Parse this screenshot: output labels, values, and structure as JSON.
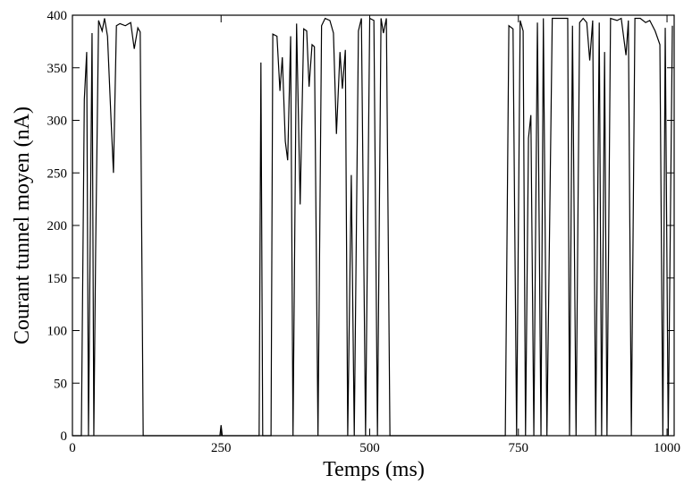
{
  "chart_data": {
    "type": "line",
    "x_label": "Temps (ms)",
    "y_label": "Courant tunnel moyen (nA)",
    "color": "#000000",
    "xlim": [
      0,
      1012
    ],
    "ylim": [
      0,
      400
    ],
    "xticks": [
      0,
      250,
      500,
      750,
      1000
    ],
    "yticks": [
      0,
      50,
      100,
      150,
      200,
      250,
      300,
      350,
      400
    ],
    "x": [
      0,
      15,
      20,
      24,
      27,
      33,
      36,
      39,
      44,
      50,
      54,
      59,
      65,
      69,
      74,
      80,
      89,
      98,
      104,
      110,
      114,
      119,
      248,
      250,
      252,
      314,
      317,
      320,
      334,
      337,
      344,
      349,
      353,
      358,
      362,
      367,
      371,
      377,
      383,
      389,
      394,
      398,
      403,
      407,
      413,
      419,
      425,
      433,
      439,
      444,
      450,
      454,
      459,
      463,
      469,
      474,
      481,
      486,
      493,
      500,
      507,
      513,
      519,
      523,
      528,
      534,
      728,
      734,
      741,
      747,
      753,
      758,
      762,
      767,
      771,
      776,
      782,
      788,
      792,
      798,
      807,
      816,
      825,
      833,
      836,
      841,
      847,
      853,
      859,
      865,
      870,
      875,
      880,
      886,
      890,
      895,
      899,
      905,
      916,
      923,
      931,
      935,
      940,
      946,
      955,
      964,
      971,
      980,
      988,
      993,
      997,
      1002,
      1009
    ],
    "values": [
      0,
      0,
      320,
      365,
      0,
      383,
      0,
      175,
      395,
      385,
      397,
      380,
      300,
      250,
      390,
      392,
      390,
      393,
      368,
      388,
      384,
      0,
      0,
      10,
      0,
      0,
      355,
      0,
      0,
      382,
      380,
      328,
      360,
      280,
      262,
      380,
      0,
      392,
      220,
      387,
      385,
      332,
      372,
      370,
      0,
      390,
      397,
      395,
      383,
      287,
      365,
      330,
      367,
      0,
      248,
      0,
      385,
      397,
      0,
      397,
      395,
      0,
      397,
      383,
      397,
      0,
      0,
      390,
      387,
      0,
      395,
      385,
      0,
      283,
      305,
      0,
      393,
      0,
      397,
      0,
      397,
      397,
      397,
      397,
      0,
      390,
      0,
      393,
      397,
      393,
      357,
      395,
      0,
      393,
      0,
      365,
      0,
      397,
      395,
      397,
      362,
      395,
      0,
      397,
      397,
      393,
      395,
      385,
      372,
      0,
      388,
      0,
      390
    ]
  }
}
